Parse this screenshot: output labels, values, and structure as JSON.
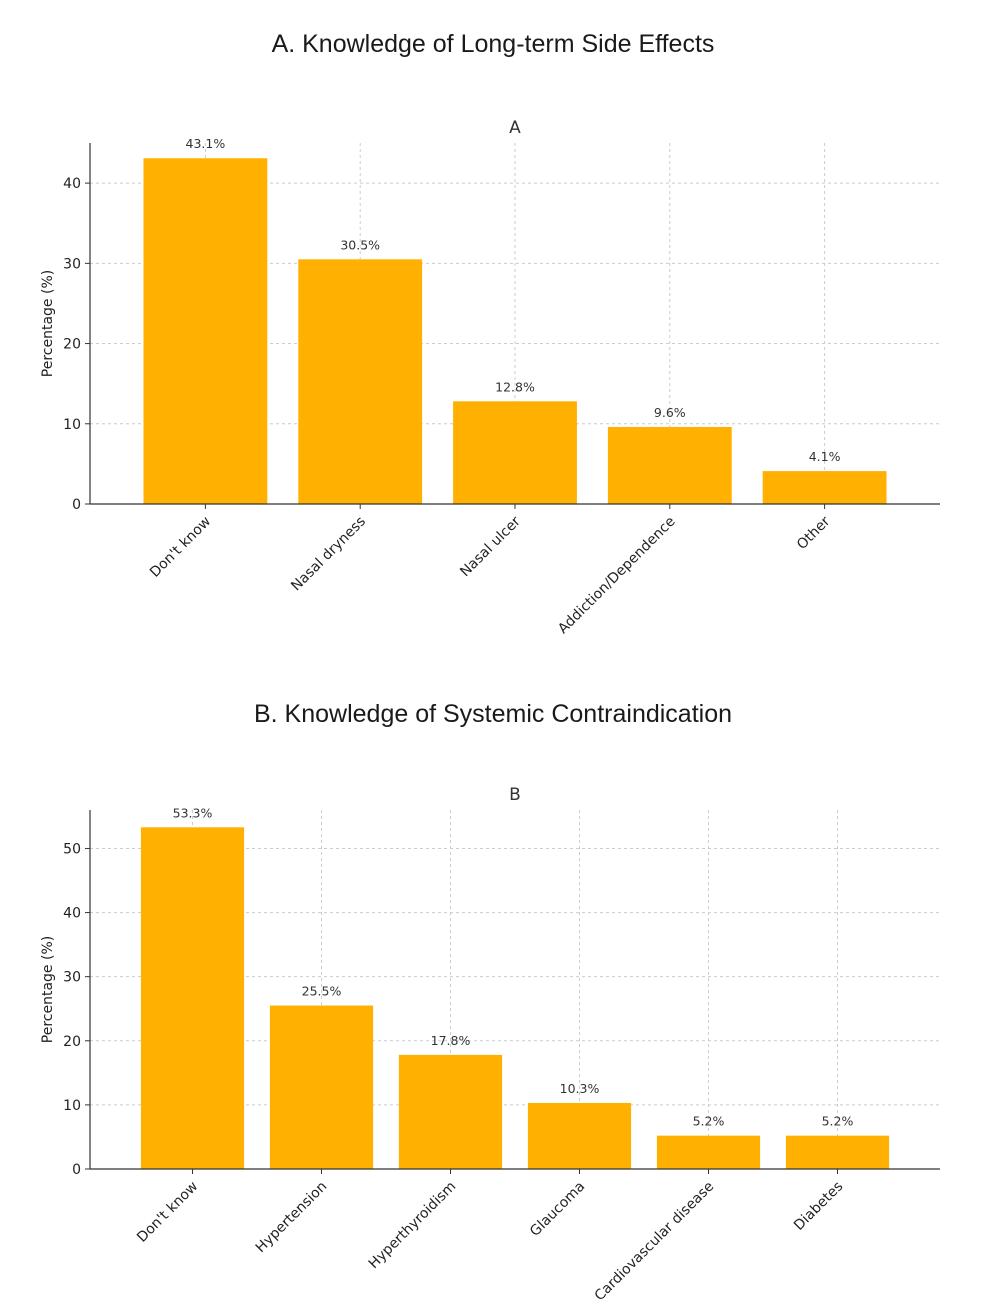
{
  "panels": [
    {
      "heading": "A. Knowledge of Long-term Side Effects"
    },
    {
      "heading": "B. Knowledge of Systemic Contraindication"
    }
  ],
  "chart_data": [
    {
      "type": "bar",
      "title": "A",
      "xlabel": "",
      "ylabel": "Percentage (%)",
      "categories": [
        "Don't know",
        "Nasal dryness",
        "Nasal ulcer",
        "Addiction/Dependence",
        "Other"
      ],
      "values": [
        43.1,
        30.5,
        12.8,
        9.6,
        4.1
      ],
      "data_labels": [
        "43.1%",
        "30.5%",
        "12.8%",
        "9.6%",
        "4.1%"
      ],
      "ylim": [
        0,
        45
      ],
      "yticks": [
        0,
        10,
        20,
        30,
        40
      ],
      "bar_color": "#FFB000",
      "grid": true
    },
    {
      "type": "bar",
      "title": "B",
      "xlabel": "",
      "ylabel": "Percentage (%)",
      "categories": [
        "Don't know",
        "Hypertension",
        "Hyperthyroidism",
        "Glaucoma",
        "Cardiovascular disease",
        "Diabetes"
      ],
      "values": [
        53.3,
        25.5,
        17.8,
        10.3,
        5.2,
        5.2
      ],
      "data_labels": [
        "53.3%",
        "25.5%",
        "17.8%",
        "10.3%",
        "5.2%",
        "5.2%"
      ],
      "ylim": [
        0,
        56
      ],
      "yticks": [
        0,
        10,
        20,
        30,
        40,
        50
      ],
      "bar_color": "#FFB000",
      "grid": true
    }
  ]
}
